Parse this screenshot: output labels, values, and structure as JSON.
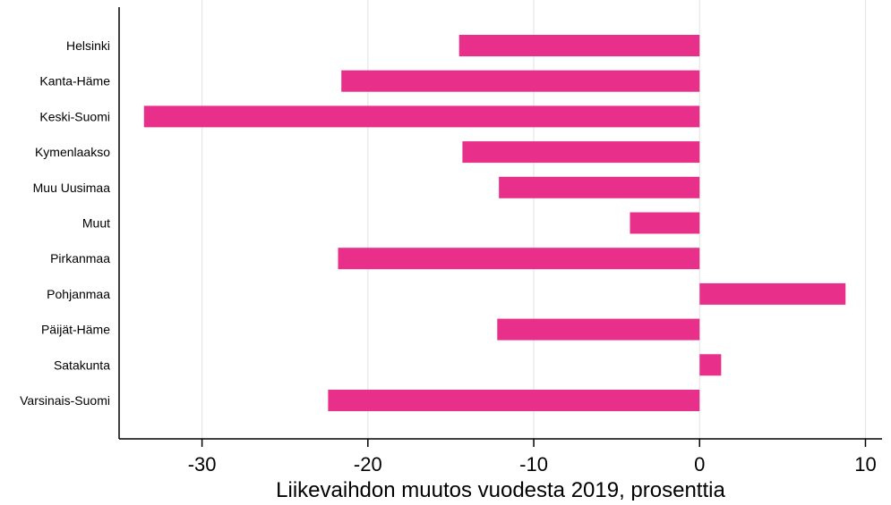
{
  "chart_data": {
    "type": "bar",
    "orientation": "horizontal",
    "title": "",
    "xlabel": "Liikevaihdon muutos vuodesta 2019, prosenttia",
    "ylabel": "",
    "categories": [
      "Helsinki",
      "Kanta-Häme",
      "Keski-Suomi",
      "Kymenlaakso",
      "Muu Uusimaa",
      "Muut",
      "Pirkanmaa",
      "Pohjanmaa",
      "Päijät-Häme",
      "Satakunta",
      "Varsinais-Suomi"
    ],
    "values": [
      -14.5,
      -21.6,
      -33.5,
      -14.3,
      -12.1,
      -4.2,
      -21.8,
      8.8,
      -12.2,
      1.3,
      -22.4
    ],
    "xlim": [
      -35,
      11
    ],
    "xticks": [
      -30,
      -20,
      -10,
      0,
      10
    ],
    "xtick_labels": [
      "-30",
      "-20",
      "-10",
      "0",
      "10"
    ],
    "grid": "vertical",
    "bar_color": "#E8308A",
    "grid_color": "#E6E6E6"
  }
}
